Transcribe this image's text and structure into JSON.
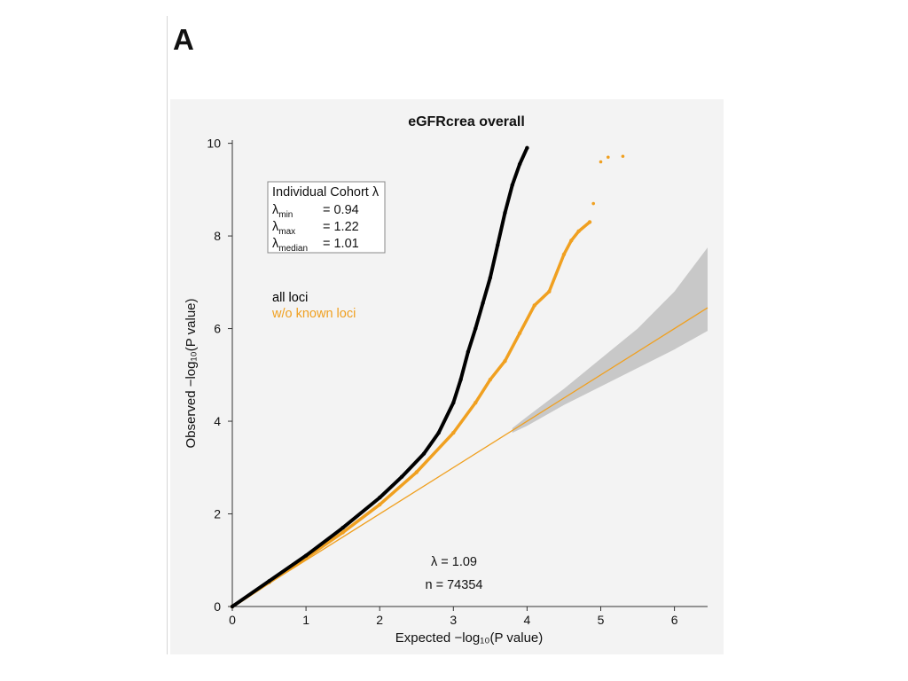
{
  "panel_label": "A",
  "chart_data": {
    "type": "scatter",
    "title": "eGFRcrea overall",
    "xlabel": "Expected  −log₁₀(P value)",
    "ylabel": "Observed  −log₁₀(P value)",
    "xlim": [
      0,
      6.45
    ],
    "ylim": [
      0,
      10.05
    ],
    "xticks": [
      "0",
      "1",
      "2",
      "3",
      "4",
      "5",
      "6"
    ],
    "yticks": [
      "0",
      "2",
      "4",
      "6",
      "8",
      "10"
    ],
    "series": [
      {
        "name": "all loci",
        "color": "#000000",
        "x": [
          0,
          0.5,
          1.0,
          1.5,
          2.0,
          2.3,
          2.6,
          2.8,
          3.0,
          3.1,
          3.2,
          3.3,
          3.4,
          3.5,
          3.6,
          3.7,
          3.8,
          3.9,
          4.0
        ],
        "y": [
          0,
          0.55,
          1.1,
          1.7,
          2.35,
          2.8,
          3.3,
          3.75,
          4.4,
          4.9,
          5.5,
          6.0,
          6.55,
          7.1,
          7.8,
          8.5,
          9.1,
          9.55,
          9.9
        ]
      },
      {
        "name": "w/o known loci",
        "color": "#f0a020",
        "x": [
          0,
          0.5,
          1.0,
          1.5,
          2.0,
          2.5,
          3.0,
          3.3,
          3.5,
          3.7,
          3.9,
          4.1,
          4.3,
          4.5,
          4.6,
          4.7,
          4.85,
          4.9,
          5.0,
          5.1,
          5.3
        ],
        "y": [
          0,
          0.52,
          1.05,
          1.6,
          2.2,
          2.9,
          3.75,
          4.4,
          4.9,
          5.3,
          5.9,
          6.5,
          6.8,
          7.6,
          7.9,
          8.1,
          8.3,
          8.7,
          9.6,
          9.7,
          9.72
        ]
      }
    ],
    "reference_line": {
      "slope": 1,
      "intercept": 0,
      "color": "#f0a020"
    },
    "confidence_band": {
      "x": [
        3.8,
        4.0,
        4.5,
        5.0,
        5.5,
        6.0,
        6.45
      ],
      "upper": [
        3.85,
        4.1,
        4.7,
        5.35,
        6.0,
        6.8,
        7.75
      ],
      "lower": [
        3.75,
        3.9,
        4.35,
        4.75,
        5.15,
        5.55,
        5.95
      ],
      "color": "#c8c8c8"
    },
    "cohort_box": {
      "title": "Individual Cohort λ",
      "rows": [
        {
          "symbol": "λ",
          "subscript": "min",
          "value": "= 0.94"
        },
        {
          "symbol": "λ",
          "subscript": "max",
          "value": "= 1.22"
        },
        {
          "symbol": "λ",
          "subscript": "median",
          "value": "= 1.01"
        }
      ]
    },
    "legend": [
      {
        "label": "all loci",
        "color": "#000000"
      },
      {
        "label": "w/o known loci",
        "color": "#f0a020"
      }
    ],
    "annotations": {
      "lambda": "λ = 1.09",
      "n": "n = 74354"
    }
  }
}
